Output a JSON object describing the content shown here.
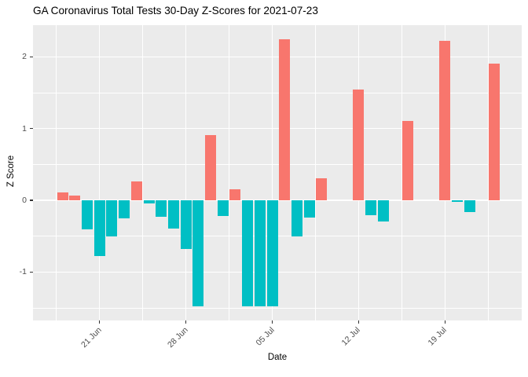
{
  "chart_data": {
    "type": "bar",
    "title": "GA Coronavirus Total Tests 30-Day Z-Scores for 2021-07-23",
    "xlabel": "Date",
    "ylabel": "Z Score",
    "ylim": [
      -1.67,
      2.44
    ],
    "grid": "white major and minor gridlines on gray panel, legend none",
    "colors": {
      "positive_bar": "#F8766D",
      "negative_bar": "#00BFC4",
      "panel_background": "#EBEBEB",
      "gridline": "#FFFFFF",
      "tick_label_text": "#4D4D4D",
      "title_text": "#000000"
    },
    "y_ticks": [
      -1,
      0,
      1,
      2
    ],
    "x_ticks": [
      {
        "label": "21 Jun",
        "day_index": 3
      },
      {
        "label": "28 Jun",
        "day_index": 10
      },
      {
        "label": "05 Jul",
        "day_index": 17
      },
      {
        "label": "12 Jul",
        "day_index": 24
      },
      {
        "label": "19 Jul",
        "day_index": 31
      }
    ],
    "points": [
      {
        "date": "2021-06-18",
        "value": 0.11
      },
      {
        "date": "2021-06-19",
        "value": 0.07
      },
      {
        "date": "2021-06-20",
        "value": -0.4
      },
      {
        "date": "2021-06-21",
        "value": -0.78
      },
      {
        "date": "2021-06-22",
        "value": -0.5
      },
      {
        "date": "2021-06-23",
        "value": -0.25
      },
      {
        "date": "2021-06-24",
        "value": 0.26
      },
      {
        "date": "2021-06-25",
        "value": -0.04
      },
      {
        "date": "2021-06-26",
        "value": -0.23
      },
      {
        "date": "2021-06-27",
        "value": -0.39
      },
      {
        "date": "2021-06-28",
        "value": -0.68
      },
      {
        "date": "2021-06-29",
        "value": -1.48
      },
      {
        "date": "2021-06-30",
        "value": 0.91
      },
      {
        "date": "2021-07-01",
        "value": -0.22
      },
      {
        "date": "2021-07-02",
        "value": 0.15
      },
      {
        "date": "2021-07-03",
        "value": -1.48
      },
      {
        "date": "2021-07-04",
        "value": -1.48
      },
      {
        "date": "2021-07-05",
        "value": -1.48
      },
      {
        "date": "2021-07-06",
        "value": 2.24
      },
      {
        "date": "2021-07-07",
        "value": -0.5
      },
      {
        "date": "2021-07-08",
        "value": -0.24
      },
      {
        "date": "2021-07-09",
        "value": 0.31
      },
      {
        "date": "2021-07-10",
        "value": 0
      },
      {
        "date": "2021-07-11",
        "value": 0
      },
      {
        "date": "2021-07-12",
        "value": 1.54
      },
      {
        "date": "2021-07-13",
        "value": -0.21
      },
      {
        "date": "2021-07-14",
        "value": -0.29
      },
      {
        "date": "2021-07-15",
        "value": 0
      },
      {
        "date": "2021-07-16",
        "value": 1.11
      },
      {
        "date": "2021-07-17",
        "value": 0
      },
      {
        "date": "2021-07-18",
        "value": 0
      },
      {
        "date": "2021-07-19",
        "value": 2.22
      },
      {
        "date": "2021-07-20",
        "value": -0.02
      },
      {
        "date": "2021-07-21",
        "value": -0.16
      },
      {
        "date": "2021-07-22",
        "value": 0
      },
      {
        "date": "2021-07-23",
        "value": 1.9
      }
    ]
  }
}
